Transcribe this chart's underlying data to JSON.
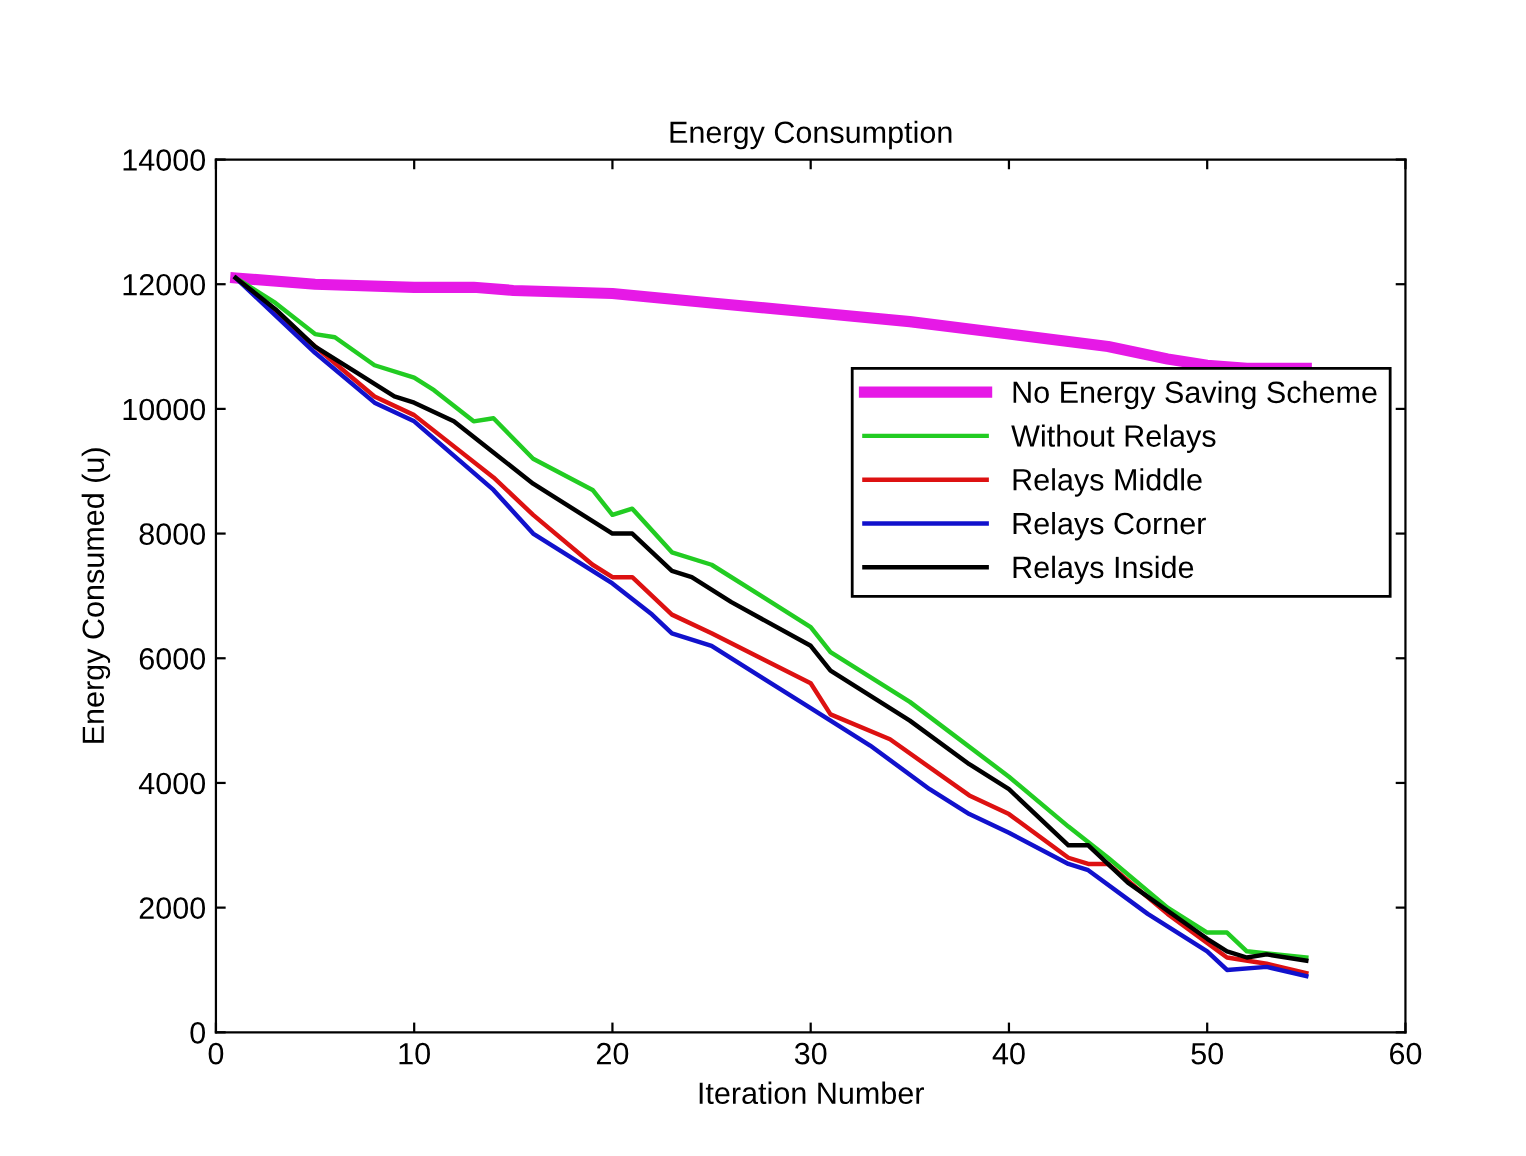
{
  "chart_data": {
    "type": "line",
    "title": "Energy Consumption",
    "xlabel": "Iteration Number",
    "ylabel": "Energy Consumed (u)",
    "xlim": [
      0,
      60
    ],
    "xticks": [
      0,
      10,
      20,
      30,
      40,
      50,
      60
    ],
    "ylim": [
      0,
      14000
    ],
    "yticks": [
      0,
      2000,
      4000,
      6000,
      8000,
      10000,
      12000,
      14000
    ],
    "grid": false,
    "legend": "right",
    "marker": "none",
    "line_style": "solid",
    "series": [
      {
        "name": "No Energy Saving Scheme",
        "color": "#e619e6",
        "x": [
          1,
          5,
          10,
          13,
          15,
          20,
          25,
          30,
          35,
          40,
          45,
          48,
          50,
          52,
          55
        ],
        "values": [
          12100,
          12000,
          11950,
          11950,
          11900,
          11850,
          11700,
          11550,
          11400,
          11200,
          11000,
          10800,
          10700,
          10650,
          10650
        ]
      },
      {
        "name": "Without Relays",
        "color": "#22cc22",
        "x": [
          1,
          3,
          5,
          6,
          8,
          10,
          11,
          13,
          14,
          16,
          19,
          20,
          21,
          23,
          25,
          30,
          31,
          35,
          40,
          43,
          45,
          48,
          50,
          51,
          52,
          55
        ],
        "values": [
          12100,
          11700,
          11200,
          11150,
          10700,
          10500,
          10300,
          9800,
          9850,
          9200,
          8700,
          8300,
          8400,
          7700,
          7500,
          6500,
          6100,
          5300,
          4100,
          3300,
          2800,
          2000,
          1600,
          1600,
          1300,
          1200
        ]
      },
      {
        "name": "Relays Middle",
        "color": "#dd1111",
        "x": [
          1,
          5,
          8,
          10,
          14,
          16,
          19,
          20,
          21,
          23,
          25,
          30,
          31,
          34,
          38,
          40,
          43,
          44,
          45,
          48,
          51,
          53,
          55
        ],
        "values": [
          12100,
          11000,
          10200,
          9900,
          8900,
          8300,
          7500,
          7300,
          7300,
          6700,
          6400,
          5600,
          5100,
          4700,
          3800,
          3500,
          2800,
          2700,
          2700,
          1900,
          1200,
          1100,
          950
        ]
      },
      {
        "name": "Relays Corner",
        "color": "#1111cc",
        "x": [
          1,
          5,
          8,
          10,
          14,
          16,
          20,
          22,
          23,
          25,
          30,
          33,
          36,
          38,
          40,
          43,
          44,
          47,
          50,
          51,
          53,
          55
        ],
        "values": [
          12100,
          10900,
          10100,
          9800,
          8700,
          8000,
          7200,
          6700,
          6400,
          6200,
          5200,
          4600,
          3900,
          3500,
          3200,
          2700,
          2600,
          1900,
          1300,
          1000,
          1050,
          900
        ]
      },
      {
        "name": "Relays Inside",
        "color": "#000000",
        "x": [
          1,
          3,
          5,
          7,
          9,
          10,
          12,
          14,
          16,
          19,
          20,
          21,
          23,
          24,
          26,
          30,
          31,
          35,
          38,
          40,
          43,
          44,
          46,
          50,
          51,
          52,
          53,
          55
        ],
        "values": [
          12100,
          11600,
          11000,
          10600,
          10200,
          10100,
          9800,
          9300,
          8800,
          8200,
          8000,
          8000,
          7400,
          7300,
          6900,
          6200,
          5800,
          5000,
          4300,
          3900,
          3000,
          3000,
          2400,
          1500,
          1300,
          1200,
          1250,
          1150
        ]
      }
    ]
  }
}
